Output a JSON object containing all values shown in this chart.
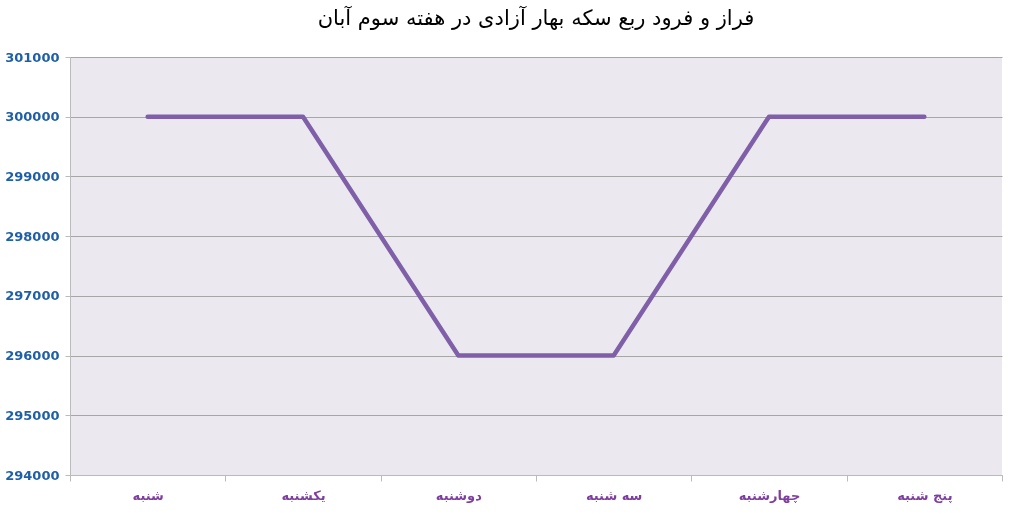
{
  "chart_data": {
    "type": "line",
    "title": "فراز و فرود ربع سکه بهار آزادی در هفته سوم آبان",
    "categories": [
      "شنبه",
      "یکشنبه",
      "دوشنبه",
      "سه شنبه",
      "چهارشنبه",
      "پنج شنبه"
    ],
    "series": [
      {
        "color": "#7f60a8",
        "values": [
          300000,
          300000,
          296000,
          296000,
          300000,
          300000
        ]
      }
    ],
    "ylim": [
      294000,
      301000
    ],
    "yticks": [
      294000,
      295000,
      296000,
      297000,
      298000,
      299000,
      300000,
      301000
    ],
    "grid": "y",
    "marker": "none",
    "line_style": "solid"
  }
}
